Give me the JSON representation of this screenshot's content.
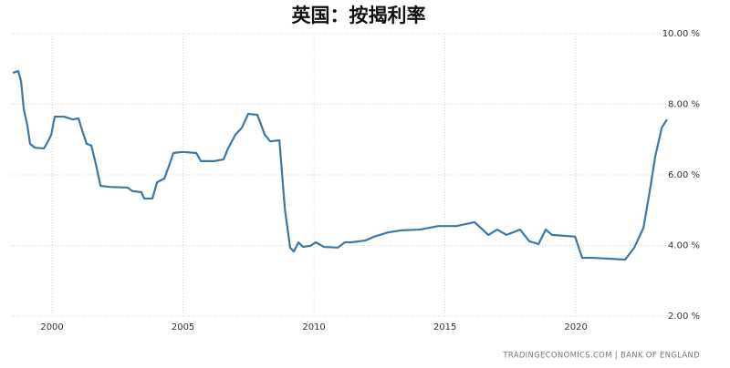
{
  "chart_data": {
    "type": "line",
    "title": "英国：按揭利率",
    "source": "TRADINGECONOMICS.COM | BANK OF ENGLAND",
    "x": [
      1998.5,
      1998.71,
      1998.82,
      1998.92,
      1999.06,
      1999.16,
      1999.34,
      1999.69,
      1999.83,
      1999.97,
      2000.1,
      2000.45,
      2000.8,
      2001.01,
      2001.15,
      2001.32,
      2001.5,
      2001.67,
      2001.85,
      2002.2,
      2002.89,
      2003.07,
      2003.41,
      2003.52,
      2003.83,
      2004.01,
      2004.29,
      2004.49,
      2004.63,
      2004.98,
      2005.51,
      2005.68,
      2006.2,
      2006.55,
      2006.72,
      2007.0,
      2007.25,
      2007.49,
      2007.84,
      2008.12,
      2008.33,
      2008.68,
      2008.89,
      2009.09,
      2009.23,
      2009.41,
      2009.58,
      2009.86,
      2010.07,
      2010.38,
      2010.91,
      2011.18,
      2011.43,
      2011.95,
      2012.3,
      2012.82,
      2013.34,
      2014.04,
      2014.74,
      2015.44,
      2016.13,
      2016.66,
      2017.0,
      2017.35,
      2017.87,
      2018.22,
      2018.57,
      2018.85,
      2019.09,
      2019.97,
      2020.24,
      2020.66,
      2021.88,
      2022.23,
      2022.58,
      2022.82,
      2023.03,
      2023.28,
      2023.48
    ],
    "values": [
      8.89,
      8.94,
      8.63,
      7.86,
      7.39,
      6.88,
      6.77,
      6.75,
      6.93,
      7.14,
      7.65,
      7.65,
      7.57,
      7.6,
      7.26,
      6.88,
      6.83,
      6.31,
      5.69,
      5.66,
      5.64,
      5.54,
      5.51,
      5.33,
      5.33,
      5.79,
      5.9,
      6.31,
      6.62,
      6.65,
      6.62,
      6.39,
      6.39,
      6.44,
      6.75,
      7.14,
      7.34,
      7.73,
      7.7,
      7.14,
      6.95,
      6.98,
      5.02,
      3.94,
      3.83,
      4.09,
      3.96,
      3.99,
      4.09,
      3.96,
      3.94,
      4.09,
      4.09,
      4.14,
      4.25,
      4.37,
      4.43,
      4.45,
      4.55,
      4.55,
      4.66,
      4.3,
      4.45,
      4.3,
      4.45,
      4.12,
      4.04,
      4.45,
      4.3,
      4.25,
      3.65,
      3.65,
      3.6,
      3.94,
      4.5,
      5.54,
      6.52,
      7.34,
      7.57
    ],
    "color": "#3b78a9",
    "xlim": [
      1998.43,
      2023.55
    ],
    "xticks": [
      2000,
      2005,
      2010,
      2015,
      2020
    ],
    "ylim": [
      2,
      10
    ],
    "yticks": [
      {
        "value": 2,
        "label": "2.00 %"
      },
      {
        "value": 4,
        "label": "4.00 %"
      },
      {
        "value": 6,
        "label": "6.00 %"
      },
      {
        "value": 8,
        "label": "8.00 %"
      },
      {
        "value": 10,
        "label": "10.00 %"
      }
    ],
    "grid": true
  }
}
